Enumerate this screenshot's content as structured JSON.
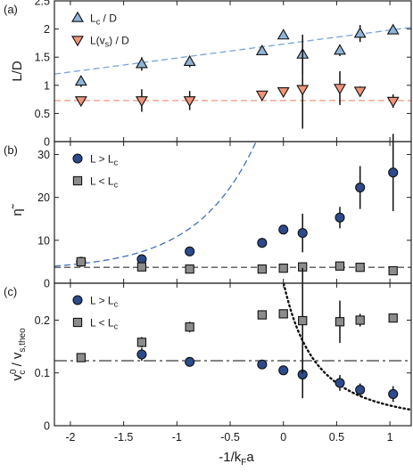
{
  "chart_data": [
    {
      "type": "scatter",
      "panel_label": "(a)",
      "ylabel": "L/D",
      "ylim": [
        0,
        2.5
      ],
      "yticks": [
        0,
        0.5,
        1,
        1.5,
        2,
        2.5
      ],
      "ytick_labels": [
        "0",
        "0.5",
        "1",
        "1.5",
        "2",
        "2.5"
      ],
      "xlim": [
        -2.15,
        1.2
      ],
      "legend_placement": "top-left",
      "series": [
        {
          "name": "L_c / D",
          "name_main": "L",
          "name_sub": "c",
          "name_tail": " / D",
          "marker": "triangle-up",
          "color": "#8fb4d9",
          "x": [
            -1.9,
            -1.33,
            -0.88,
            -0.2,
            0,
            0.18,
            0.53,
            0.72,
            1.03
          ],
          "y": [
            1.07,
            1.38,
            1.42,
            1.61,
            1.89,
            1.55,
            1.62,
            1.92,
            1.98
          ],
          "yerr": [
            0.1,
            0.12,
            0.1,
            0.06,
            0.05,
            0.35,
            0.1,
            0.15,
            0.06
          ]
        },
        {
          "name": "L(v_s) / D",
          "name_main": "L(v",
          "name_sub": "s",
          "name_tail": ") / D",
          "marker": "triangle-down",
          "color": "#f0957a",
          "x": [
            -1.9,
            -1.33,
            -0.88,
            -0.2,
            0,
            0.18,
            0.53,
            0.72,
            1.03
          ],
          "y": [
            0.73,
            0.73,
            0.73,
            0.83,
            0.89,
            0.93,
            0.95,
            0.9,
            0.72
          ],
          "yerr": [
            0.05,
            0.2,
            0.17,
            0.04,
            0.04,
            0.7,
            0.3,
            0.08,
            0.12
          ]
        }
      ],
      "guides": [
        {
          "style": "dashed",
          "color": "#7aa3d6",
          "x": [
            -2.15,
            1.2
          ],
          "y": [
            1.2,
            2.03
          ]
        },
        {
          "style": "dashed",
          "color": "#f0957a",
          "x": [
            -2.15,
            1.2
          ],
          "y": [
            0.73,
            0.73
          ]
        }
      ]
    },
    {
      "type": "scatter",
      "panel_label": "(b)",
      "ylabel": "η̃",
      "ylim": [
        0,
        33
      ],
      "yticks": [
        0,
        10,
        20,
        30
      ],
      "ytick_labels": [
        "0",
        "10",
        "20",
        "30"
      ],
      "xlim": [
        -2.15,
        1.2
      ],
      "legend_placement": "top-left",
      "series": [
        {
          "name": "L > L_c",
          "name_main": "L > L",
          "name_sub": "c",
          "name_tail": "",
          "marker": "circle",
          "color": "#2c4a8c",
          "x": [
            -1.9,
            -1.33,
            -0.88,
            -0.2,
            0,
            0.18,
            0.53,
            0.72,
            1.03
          ],
          "y": [
            5.0,
            5.6,
            7.4,
            9.4,
            12.5,
            11.7,
            15.3,
            22.3,
            25.8
          ],
          "yerr": [
            0.6,
            0.7,
            0.7,
            0.8,
            0.8,
            4.5,
            2.5,
            5.0,
            9.0
          ]
        },
        {
          "name": "L < L_c",
          "name_main": "L < L",
          "name_sub": "c",
          "name_tail": "",
          "marker": "square",
          "color": "#8c8c8c",
          "x": [
            -1.9,
            -1.33,
            -0.88,
            -0.2,
            0,
            0.18,
            0.53,
            0.72,
            1.03
          ],
          "y": [
            5.0,
            3.8,
            3.3,
            3.3,
            3.5,
            3.8,
            4.0,
            3.7,
            2.9
          ],
          "yerr": [
            0.3,
            0.3,
            0.3,
            0.3,
            0.3,
            0.5,
            0.5,
            0.4,
            0.4
          ]
        }
      ],
      "guides": [
        {
          "style": "dashed",
          "color": "#3f6fc0",
          "function": "exp",
          "base": 4.3,
          "amp": 1.3,
          "rate": 1.8,
          "x0": -2.0,
          "xrange": [
            -2.15,
            1.2
          ]
        },
        {
          "style": "dashed",
          "color": "#555555",
          "x": [
            -2.15,
            1.2
          ],
          "y": [
            3.7,
            3.7
          ]
        }
      ]
    },
    {
      "type": "scatter",
      "panel_label": "(c)",
      "ylabel_main": "v",
      "ylabel_sup": "0",
      "ylabel_sub": "c",
      "ylabel_mid": " / v",
      "ylabel_sub2": "s,theo",
      "ylim": [
        0,
        0.27
      ],
      "yticks": [
        0,
        0.1,
        0.2
      ],
      "ytick_labels": [
        "0",
        "0.1",
        "0.2"
      ],
      "xlim": [
        -2.15,
        1.2
      ],
      "xlabel_main": "-1/k",
      "xlabel_sub": "F",
      "xlabel_tail": "a",
      "xticks": [
        -2,
        -1.5,
        -1,
        -0.5,
        0,
        0.5,
        1
      ],
      "xtick_labels": [
        "-2",
        "-1.5",
        "-1",
        "-0.5",
        "0",
        "0.5",
        "1"
      ],
      "legend_placement": "top-left",
      "series": [
        {
          "name": "L > L_c",
          "name_main": "L > L",
          "name_sub": "c",
          "name_tail": "",
          "marker": "circle",
          "color": "#2c4a8c",
          "x": [
            -1.33,
            -0.88,
            -0.2,
            0,
            0.18,
            0.53,
            0.72,
            1.03
          ],
          "y": [
            0.135,
            0.121,
            0.116,
            0.105,
            0.097,
            0.081,
            0.068,
            0.06
          ],
          "yerr": [
            0.012,
            0.008,
            0.006,
            0.008,
            0.045,
            0.015,
            0.012,
            0.015
          ]
        },
        {
          "name": "L < L_c",
          "name_main": "L < L",
          "name_sub": "c",
          "name_tail": "",
          "marker": "square",
          "color": "#8c8c8c",
          "x": [
            -1.9,
            -1.33,
            -0.88,
            -0.2,
            0,
            0.18,
            0.53,
            0.72,
            1.03
          ],
          "y": [
            0.129,
            0.158,
            0.187,
            0.21,
            0.212,
            0.199,
            0.197,
            0.2,
            0.204
          ],
          "yerr": [
            0.005,
            0.01,
            0.01,
            0.007,
            0.007,
            0.1,
            0.04,
            0.012,
            0.007
          ]
        }
      ],
      "guides": [
        {
          "style": "dashdot",
          "color": "#666666",
          "x": [
            -2.15,
            1.2
          ],
          "y": [
            0.123,
            0.123
          ]
        },
        {
          "style": "dotted",
          "color": "#111111",
          "function": "power",
          "coef": 0.098,
          "shift": 0.6,
          "xrange": [
            -0.5,
            1.2
          ]
        }
      ]
    }
  ]
}
